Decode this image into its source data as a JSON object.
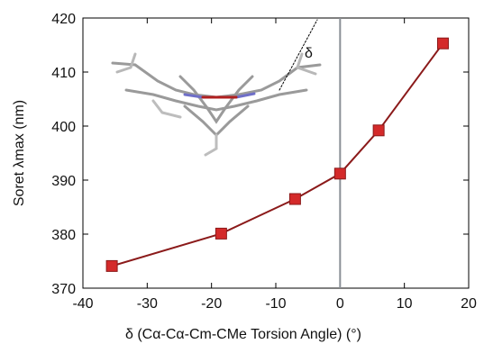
{
  "chart_data": {
    "type": "line",
    "xlabel": "δ (Cα-Cα-Cm-CMe Torsion Angle) (°)",
    "ylabel": "Soret λmax (nm)",
    "annotation": "δ",
    "x": [
      -35.5,
      -18.5,
      -7,
      0,
      6,
      16
    ],
    "values": [
      374.1,
      380.1,
      386.5,
      391.2,
      399.2,
      415.3
    ],
    "color": "#8b1a1a",
    "marker_color": "#d42a2a",
    "xlim": [
      -40,
      20
    ],
    "xticks": [
      -40,
      -30,
      -20,
      -10,
      0,
      10,
      20
    ],
    "ylim": [
      370,
      420
    ],
    "yticks": [
      370,
      380,
      390,
      400,
      410,
      420
    ],
    "vline": 0,
    "grid": false
  }
}
